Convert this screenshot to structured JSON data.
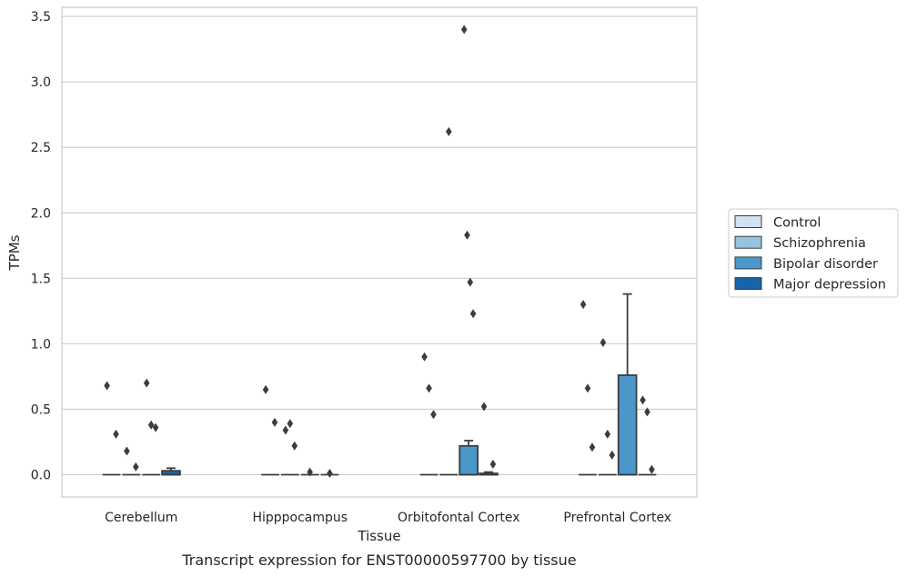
{
  "caption": "Transcript expression for ENST00000597700 by tissue",
  "chart_data": {
    "type": "box",
    "xlabel": "Tissue",
    "ylabel": "TPMs",
    "ylim": [
      -0.17,
      3.57
    ],
    "yticks": [
      "0.0",
      "0.5",
      "1.0",
      "1.5",
      "2.0",
      "2.5",
      "3.0",
      "3.5"
    ],
    "ytick_values": [
      0.0,
      0.5,
      1.0,
      1.5,
      2.0,
      2.5,
      3.0,
      3.5
    ],
    "grid": true,
    "legend_position": "right",
    "categories": [
      "Cerebellum",
      "Hipppocampus",
      "Orbitofontal Cortex",
      "Prefrontal Cortex"
    ],
    "series": [
      {
        "name": "Control",
        "color": "#d0e1f2",
        "boxes": [
          {
            "q1": 0,
            "median": 0,
            "q3": 0,
            "whisker_low": 0,
            "whisker_high": 0,
            "outliers": [
              0.68,
              0.31
            ]
          },
          {
            "q1": 0,
            "median": 0,
            "q3": 0,
            "whisker_low": 0,
            "whisker_high": 0,
            "outliers": [
              0.65,
              0.4
            ]
          },
          {
            "q1": 0,
            "median": 0,
            "q3": 0,
            "whisker_low": 0,
            "whisker_high": 0,
            "outliers": [
              0.9,
              0.66,
              0.46
            ]
          },
          {
            "q1": 0,
            "median": 0,
            "q3": 0,
            "whisker_low": 0,
            "whisker_high": 0,
            "outliers": [
              1.3,
              0.66,
              0.21
            ]
          }
        ]
      },
      {
        "name": "Schizophrenia",
        "color": "#94c4df",
        "boxes": [
          {
            "q1": 0,
            "median": 0,
            "q3": 0,
            "whisker_low": 0,
            "whisker_high": 0,
            "outliers": [
              0.18,
              0.06
            ]
          },
          {
            "q1": 0,
            "median": 0,
            "q3": 0,
            "whisker_low": 0,
            "whisker_high": 0,
            "outliers": [
              0.34,
              0.39,
              0.22
            ]
          },
          {
            "q1": 0,
            "median": 0,
            "q3": 0,
            "whisker_low": 0,
            "whisker_high": 0,
            "outliers": [
              2.62
            ]
          },
          {
            "q1": 0,
            "median": 0,
            "q3": 0,
            "whisker_low": 0,
            "whisker_high": 0,
            "outliers": [
              1.01,
              0.31,
              0.15
            ]
          }
        ]
      },
      {
        "name": "Bipolar disorder",
        "color": "#4a98c9",
        "boxes": [
          {
            "q1": 0,
            "median": 0,
            "q3": 0,
            "whisker_low": 0,
            "whisker_high": 0,
            "outliers": [
              0.7,
              0.38,
              0.36
            ]
          },
          {
            "q1": 0,
            "median": 0,
            "q3": 0,
            "whisker_low": 0,
            "whisker_high": 0,
            "outliers": [
              0.02
            ]
          },
          {
            "q1": 0,
            "median": 0,
            "q3": 0.22,
            "whisker_low": 0,
            "whisker_high": 0.26,
            "outliers": [
              3.4,
              1.83,
              1.47,
              1.23
            ]
          },
          {
            "q1": 0,
            "median": 0,
            "q3": 0.76,
            "whisker_low": 0,
            "whisker_high": 1.38,
            "outliers": []
          }
        ]
      },
      {
        "name": "Major depression",
        "color": "#1764ab",
        "boxes": [
          {
            "q1": 0,
            "median": 0,
            "q3": 0.03,
            "whisker_low": 0,
            "whisker_high": 0.05,
            "outliers": []
          },
          {
            "q1": 0,
            "median": 0,
            "q3": 0,
            "whisker_low": 0,
            "whisker_high": 0,
            "outliers": [
              0.01
            ]
          },
          {
            "q1": 0,
            "median": 0,
            "q3": 0.01,
            "whisker_low": 0,
            "whisker_high": 0.02,
            "outliers": [
              0.52,
              0.08
            ]
          },
          {
            "q1": 0,
            "median": 0,
            "q3": 0,
            "whisker_low": 0,
            "whisker_high": 0,
            "outliers": [
              0.57,
              0.48,
              0.04
            ]
          }
        ]
      }
    ]
  }
}
